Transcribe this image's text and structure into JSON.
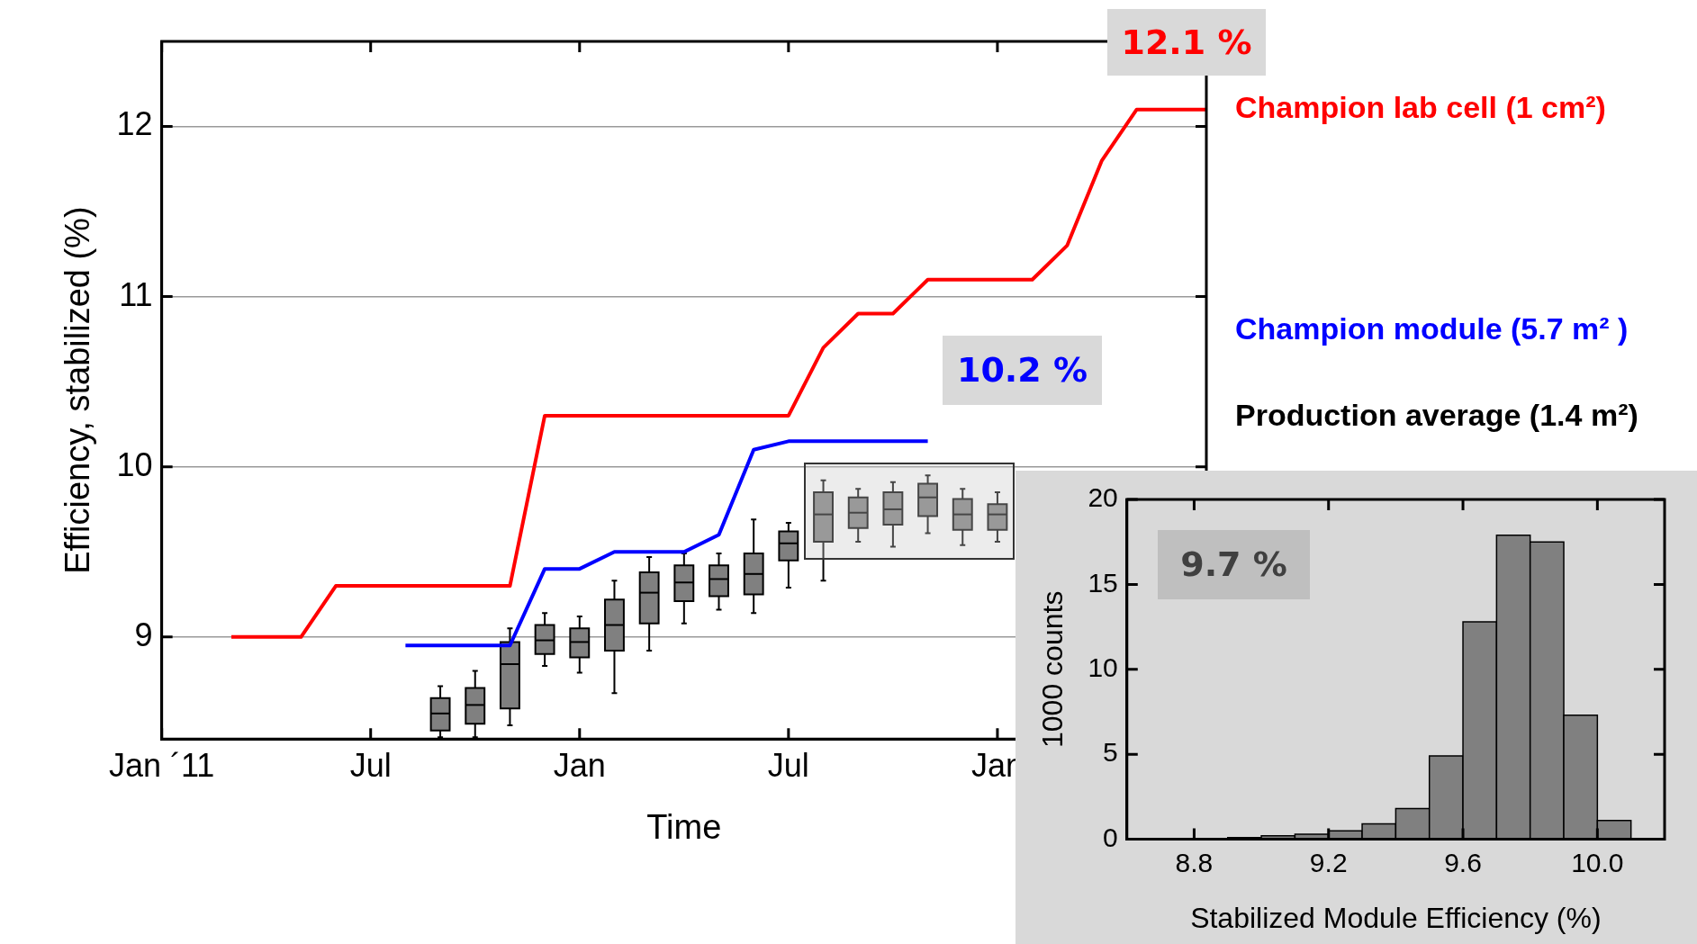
{
  "chart_data": [
    {
      "type": "line",
      "xlabel": "Time",
      "ylabel": "Efficiency, stabilized (%)",
      "xlim": [
        "2011-01",
        "2013-07"
      ],
      "xticks": [
        {
          "value": "2011-01",
          "label": "Jan ´11"
        },
        {
          "value": "2011-07",
          "label": "Jul"
        },
        {
          "value": "2012-01",
          "label": "Jan"
        },
        {
          "value": "2012-07",
          "label": "Jul"
        },
        {
          "value": "2013-01",
          "label": "Jan"
        }
      ],
      "ylim": [
        8.4,
        12.5
      ],
      "yticks": [
        9,
        10,
        11,
        12
      ],
      "grid": "y",
      "legend": "right",
      "annotations": [
        "12.1 %",
        "10.2 %"
      ],
      "series": [
        {
          "name": "Champion lab cell (1 cm²)",
          "color": "#ff0000",
          "x": [
            "2011-03",
            "2011-05",
            "2011-06",
            "2011-11",
            "2011-12",
            "2012-07",
            "2012-08",
            "2012-09",
            "2012-10",
            "2012-11",
            "2013-02",
            "2013-03",
            "2013-04",
            "2013-05",
            "2013-07"
          ],
          "values": [
            9.0,
            9.0,
            9.3,
            9.3,
            10.3,
            10.3,
            10.7,
            10.9,
            10.9,
            11.1,
            11.1,
            11.3,
            11.8,
            12.1,
            12.1
          ]
        },
        {
          "name": "Champion module (5.7 m² )",
          "color": "#0000ff",
          "x": [
            "2011-08",
            "2011-11",
            "2011-12",
            "2012-01",
            "2012-02",
            "2012-04",
            "2012-05",
            "2012-06",
            "2012-07",
            "2012-11"
          ],
          "values": [
            8.95,
            8.95,
            9.4,
            9.4,
            9.5,
            9.5,
            9.6,
            10.1,
            10.15,
            10.15
          ]
        },
        {
          "type": "box",
          "name": "Production average (1.4 m²)",
          "color": "#808080",
          "x": [
            "2011-09",
            "2011-10",
            "2011-11",
            "2011-12",
            "2012-01",
            "2012-02",
            "2012-03",
            "2012-04",
            "2012-05",
            "2012-06",
            "2012-07",
            "2012-08",
            "2012-09",
            "2012-10",
            "2012-11",
            "2012-12",
            "2013-01"
          ],
          "boxes": [
            {
              "low": 8.41,
              "q1": 8.45,
              "median": 8.55,
              "q3": 8.64,
              "high": 8.71
            },
            {
              "low": 8.41,
              "q1": 8.49,
              "median": 8.6,
              "q3": 8.7,
              "high": 8.8
            },
            {
              "low": 8.48,
              "q1": 8.58,
              "median": 8.84,
              "q3": 8.97,
              "high": 9.05
            },
            {
              "low": 8.83,
              "q1": 8.9,
              "median": 8.98,
              "q3": 9.07,
              "high": 9.14
            },
            {
              "low": 8.79,
              "q1": 8.88,
              "median": 8.97,
              "q3": 9.05,
              "high": 9.12
            },
            {
              "low": 8.67,
              "q1": 8.92,
              "median": 9.07,
              "q3": 9.22,
              "high": 9.33
            },
            {
              "low": 8.92,
              "q1": 9.08,
              "median": 9.26,
              "q3": 9.38,
              "high": 9.47
            },
            {
              "low": 9.08,
              "q1": 9.21,
              "median": 9.32,
              "q3": 9.42,
              "high": 9.49
            },
            {
              "low": 9.16,
              "q1": 9.24,
              "median": 9.34,
              "q3": 9.42,
              "high": 9.49
            },
            {
              "low": 9.14,
              "q1": 9.25,
              "median": 9.37,
              "q3": 9.49,
              "high": 9.69
            },
            {
              "low": 9.29,
              "q1": 9.45,
              "median": 9.55,
              "q3": 9.62,
              "high": 9.67
            },
            {
              "low": 9.33,
              "q1": 9.56,
              "median": 9.72,
              "q3": 9.85,
              "high": 9.92
            },
            {
              "low": 9.56,
              "q1": 9.64,
              "median": 9.73,
              "q3": 9.82,
              "high": 9.87
            },
            {
              "low": 9.53,
              "q1": 9.66,
              "median": 9.75,
              "q3": 9.85,
              "high": 9.91
            },
            {
              "low": 9.61,
              "q1": 9.71,
              "median": 9.82,
              "q3": 9.9,
              "high": 9.95
            },
            {
              "low": 9.54,
              "q1": 9.63,
              "median": 9.72,
              "q3": 9.81,
              "high": 9.87
            },
            {
              "low": 9.56,
              "q1": 9.63,
              "median": 9.72,
              "q3": 9.78,
              "high": 9.85
            }
          ]
        }
      ]
    },
    {
      "type": "histogram",
      "xlabel": "Stabilized Module Efficiency (%)",
      "ylabel": "1000 counts",
      "bins": [
        8.8,
        8.9,
        9.0,
        9.1,
        9.2,
        9.3,
        9.4,
        9.5,
        9.6,
        9.7,
        9.8,
        9.9,
        10.0,
        10.1
      ],
      "values": [
        0.05,
        0.1,
        0.2,
        0.3,
        0.5,
        0.9,
        1.8,
        4.9,
        12.8,
        17.9,
        17.5,
        7.3,
        1.1
      ],
      "color": "#808080",
      "xlim": [
        8.6,
        10.2
      ],
      "xticks": [
        8.8,
        9.2,
        9.6,
        {
          "value": 10,
          "label": "10.0"
        }
      ],
      "ylim": [
        0,
        20
      ],
      "yticks": [
        0,
        5,
        10,
        15,
        20
      ],
      "annotations": [
        "9.7 %"
      ]
    }
  ]
}
